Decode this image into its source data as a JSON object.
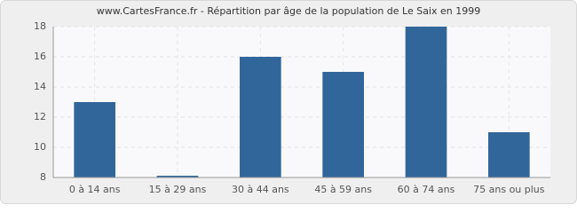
{
  "chart_data": {
    "type": "bar",
    "title": "www.CartesFrance.fr - Répartition par âge de la population de Le Saix en 1999",
    "categories": [
      "0 à 14 ans",
      "15 à 29 ans",
      "30 à 44 ans",
      "45 à 59 ans",
      "60 à 74 ans",
      "75 ans ou plus"
    ],
    "values": [
      13,
      8,
      16,
      15,
      18,
      11
    ],
    "color": "#31669a",
    "ylim": [
      8,
      18
    ],
    "yticks": [
      8,
      10,
      12,
      14,
      16,
      18
    ],
    "grid": true
  }
}
